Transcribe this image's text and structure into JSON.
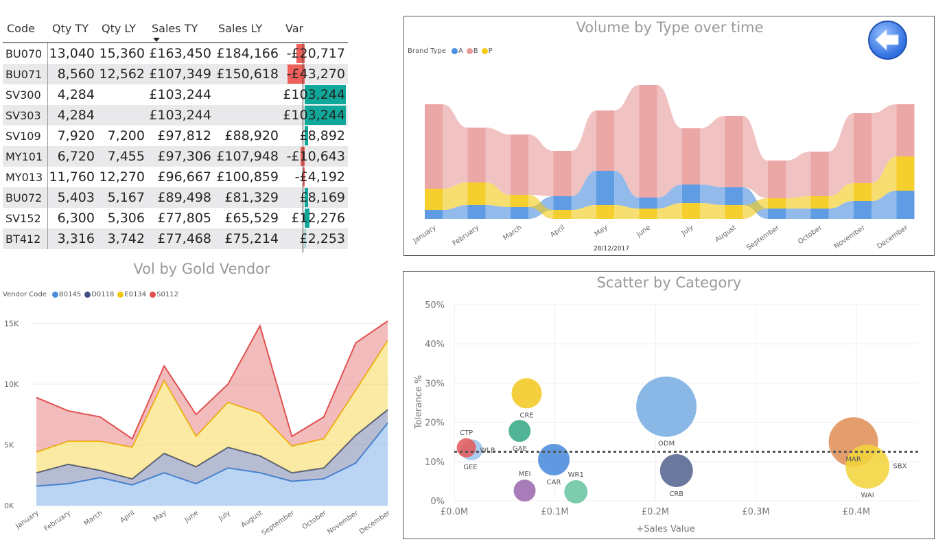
{
  "table": {
    "headers": [
      "Code",
      "Qty TY",
      "Qty LY",
      "Sales TY",
      "Sales LY",
      "Var"
    ],
    "sorted_column": "Sales TY",
    "rows": [
      {
        "code": "BU070",
        "qty_ty": "13,040",
        "qty_ly": "15,360",
        "sales_ty": "£163,450",
        "sales_ly": "£184,166",
        "var": "-£20,717",
        "var_value": -20717
      },
      {
        "code": "BU071",
        "qty_ty": "8,560",
        "qty_ly": "12,562",
        "sales_ty": "£107,349",
        "sales_ly": "£150,618",
        "var": "-£43,270",
        "var_value": -43270
      },
      {
        "code": "SV300",
        "qty_ty": "4,284",
        "qty_ly": "",
        "sales_ty": "£103,244",
        "sales_ly": "",
        "var": "£103,244",
        "var_value": 103244
      },
      {
        "code": "SV303",
        "qty_ty": "4,284",
        "qty_ly": "",
        "sales_ty": "£103,244",
        "sales_ly": "",
        "var": "£103,244",
        "var_value": 103244
      },
      {
        "code": "SV109",
        "qty_ty": "7,920",
        "qty_ly": "7,200",
        "sales_ty": "£97,812",
        "sales_ly": "£88,920",
        "var": "£8,892",
        "var_value": 8892
      },
      {
        "code": "MY101",
        "qty_ty": "6,720",
        "qty_ly": "7,455",
        "sales_ty": "£97,306",
        "sales_ly": "£107,948",
        "var": "-£10,643",
        "var_value": -10643
      },
      {
        "code": "MY013",
        "qty_ty": "11,760",
        "qty_ly": "12,270",
        "sales_ty": "£96,667",
        "sales_ly": "£100,859",
        "var": "-£4,192",
        "var_value": -4192
      },
      {
        "code": "BU072",
        "qty_ty": "5,403",
        "qty_ly": "5,167",
        "sales_ty": "£89,498",
        "sales_ly": "£81,329",
        "var": "£8,169",
        "var_value": 8169
      },
      {
        "code": "SV152",
        "qty_ty": "6,300",
        "qty_ly": "5,306",
        "sales_ty": "£77,805",
        "sales_ly": "£65,529",
        "var": "£12,276",
        "var_value": 12276
      },
      {
        "code": "BT412",
        "qty_ty": "3,316",
        "qty_ly": "3,742",
        "sales_ty": "£77,468",
        "sales_ly": "£75,214",
        "var": "£2,253",
        "var_value": 2253
      }
    ],
    "colors": {
      "positive": "#10a89a",
      "negative": "#f0605a"
    }
  },
  "chart_data": [
    {
      "type": "ribbon",
      "title": "Volume by Type over time",
      "legend_title": "Brand Type",
      "xlabel": "28/12/2017",
      "categories": [
        "January",
        "February",
        "March",
        "April",
        "May",
        "June",
        "July",
        "August",
        "September",
        "October",
        "November",
        "December"
      ],
      "series": [
        {
          "name": "A",
          "color": "#4a8ee0",
          "values": [
            13,
            20,
            17,
            20,
            50,
            16,
            27,
            26,
            15,
            15,
            26,
            41
          ]
        },
        {
          "name": "B",
          "color": "#e89a9a",
          "values": [
            123,
            80,
            88,
            66,
            88,
            164,
            82,
            104,
            55,
            65,
            102,
            76
          ]
        },
        {
          "name": "P",
          "color": "#f2c811",
          "values": [
            31,
            33,
            18,
            13,
            20,
            15,
            23,
            20,
            15,
            18,
            26,
            50
          ]
        }
      ]
    },
    {
      "type": "area",
      "stacked": true,
      "title": "Vol by Gold Vendor",
      "legend_title": "Vendor Code",
      "categories": [
        "January",
        "February",
        "March",
        "April",
        "May",
        "June",
        "July",
        "August",
        "September",
        "October",
        "November",
        "December"
      ],
      "ylim": [
        0,
        15000
      ],
      "yticks": [
        "0K",
        "5K",
        "10K",
        "15K"
      ],
      "series": [
        {
          "name": "B0145",
          "color": "#4a8ee0",
          "values": [
            1600,
            1800,
            2300,
            1700,
            2700,
            1800,
            3100,
            2700,
            2000,
            2200,
            3500,
            6800
          ]
        },
        {
          "name": "D0118",
          "color": "#3f4f85",
          "values": [
            1100,
            1600,
            600,
            500,
            1600,
            1400,
            1700,
            1400,
            700,
            900,
            2300,
            1100
          ]
        },
        {
          "name": "E0134",
          "color": "#f2c811",
          "values": [
            1700,
            1900,
            2400,
            2600,
            6000,
            2500,
            3700,
            3500,
            2200,
            2400,
            3700,
            5700
          ]
        },
        {
          "name": "S0112",
          "color": "#e0504f",
          "values": [
            4500,
            2500,
            2000,
            700,
            1200,
            1800,
            1500,
            7200,
            800,
            1800,
            3900,
            1600
          ]
        }
      ]
    },
    {
      "type": "scatter",
      "title": "Scatter by Category",
      "xlabel": "+Sales Value",
      "ylabel": "Tolerance %",
      "xlim": [
        0,
        0.47
      ],
      "ylim": [
        0,
        50
      ],
      "xticks": [
        "£0.0M",
        "£0.1M",
        "£0.2M",
        "£0.3M",
        "£0.4M"
      ],
      "yticks": [
        "0%",
        "10%",
        "20%",
        "30%",
        "40%",
        "50%"
      ],
      "reference_line": 12.5,
      "points": [
        {
          "label": "WLB",
          "x": 0.018,
          "y": 13,
          "size": 15,
          "color": "#9cc6f0",
          "label_pos": "right"
        },
        {
          "label": "GEE",
          "x": 0.016,
          "y": 12.8,
          "size": 14,
          "color": "#a8cdf0",
          "label_pos": "below"
        },
        {
          "label": "CTP",
          "x": 0.012,
          "y": 13.5,
          "size": 14,
          "color": "#e35c5c",
          "label_pos": "above"
        },
        {
          "label": "CRE",
          "x": 0.072,
          "y": 27.4,
          "size": 22,
          "color": "#f2c823",
          "label_pos": "below"
        },
        {
          "label": "GAE",
          "x": 0.065,
          "y": 17.8,
          "size": 16,
          "color": "#3aaa88",
          "label_pos": "below"
        },
        {
          "label": "CAR",
          "x": 0.099,
          "y": 10.5,
          "size": 23,
          "color": "#4a8bdc",
          "label_pos": "below"
        },
        {
          "label": "MEI",
          "x": 0.07,
          "y": 2.6,
          "size": 16,
          "color": "#9b6aae",
          "label_pos": "above"
        },
        {
          "label": "WR1",
          "x": 0.121,
          "y": 2.3,
          "size": 17,
          "color": "#6cc5a3",
          "label_pos": "above"
        },
        {
          "label": "ODM",
          "x": 0.211,
          "y": 24,
          "size": 44,
          "color": "#7aaee3",
          "label_pos": "below"
        },
        {
          "label": "CRB",
          "x": 0.221,
          "y": 7.7,
          "size": 24,
          "color": "#56658f",
          "label_pos": "below"
        },
        {
          "label": "MAR",
          "x": 0.397,
          "y": 15,
          "size": 36,
          "color": "#e0915a",
          "label_pos": "inside-below"
        },
        {
          "label": "WAI",
          "x": 0.411,
          "y": 8.7,
          "size": 32,
          "color": "#f2d43c",
          "label_pos": "below"
        },
        {
          "label": "SBX",
          "x": 0.487,
          "y": 9,
          "size": 31,
          "color": "#7483a6",
          "label_pos": "left"
        }
      ]
    }
  ],
  "back_button": {
    "icon": "arrow-left-icon"
  }
}
